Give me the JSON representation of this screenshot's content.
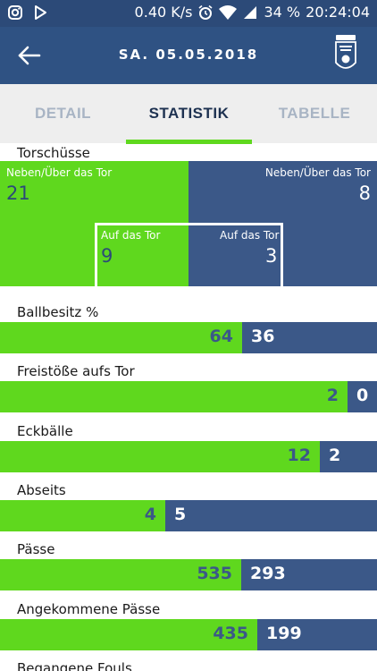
{
  "status_bar": {
    "speed": "0.40 K/s",
    "battery": "34 %",
    "time": "20:24:04"
  },
  "app_bar": {
    "title": "SA. 05.05.2018",
    "back_icon": "arrow-left-icon",
    "logo": "tipico-bundesliga-logo"
  },
  "tabs": [
    {
      "label": "DETAIL",
      "active": false
    },
    {
      "label": "STATISTIK",
      "active": true
    },
    {
      "label": "TABELLE",
      "active": false
    }
  ],
  "shots": {
    "title": "Torschüsse",
    "off_target_label": "Neben/Über das Tor",
    "home_off_target": "21",
    "away_off_target": "8",
    "on_target_label": "Auf das Tor",
    "home_on_target": "9",
    "away_on_target": "3"
  },
  "stats": [
    {
      "label": "Ballbesitz %",
      "home": "64",
      "away": "36",
      "home_value": 64,
      "away_value": 36
    },
    {
      "label": "Freistöße aufs Tor",
      "home": "2",
      "away": "0",
      "home_value": 2,
      "away_value": 0
    },
    {
      "label": "Eckbälle",
      "home": "12",
      "away": "2",
      "home_value": 12,
      "away_value": 2
    },
    {
      "label": "Abseits",
      "home": "4",
      "away": "5",
      "home_value": 4,
      "away_value": 5
    },
    {
      "label": "Pässe",
      "home": "535",
      "away": "293",
      "home_value": 535,
      "away_value": 293
    },
    {
      "label": "Angekommene Pässe",
      "home": "435",
      "away": "199",
      "home_value": 435,
      "away_value": 199
    },
    {
      "label": "Begangene Fouls",
      "home": "",
      "away": ""
    }
  ],
  "colors": {
    "home": "#5fd81e",
    "away": "#3b5888",
    "header": "#2f5283",
    "status": "#2c4a78"
  }
}
